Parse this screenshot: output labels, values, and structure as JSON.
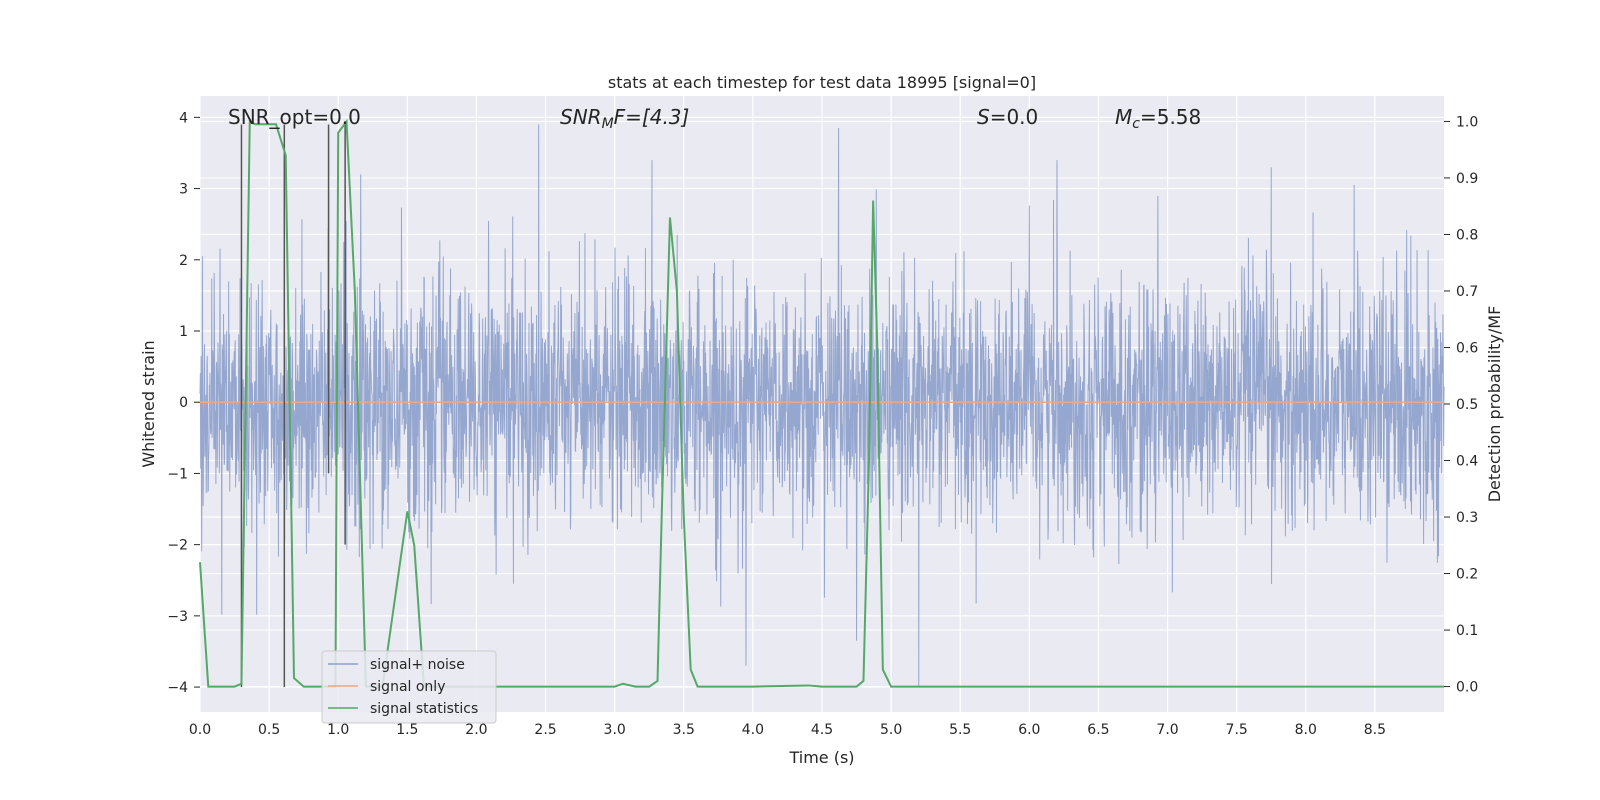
{
  "chart_data": {
    "type": "line",
    "title": "stats at each timestep for test data 18995 [signal=0]",
    "xlabel": "Time (s)",
    "ylabel": "Whitened strain",
    "y2label": "Detection probability/MF",
    "xlim": [
      0.0,
      9.0
    ],
    "ylim": [
      -4.35,
      4.3
    ],
    "y2lim": [
      -0.045,
      1.045
    ],
    "xticks": [
      "0.0",
      "0.5",
      "1.0",
      "1.5",
      "2.0",
      "2.5",
      "3.0",
      "3.5",
      "4.0",
      "4.5",
      "5.0",
      "5.5",
      "6.0",
      "6.5",
      "7.0",
      "7.5",
      "8.0",
      "8.5"
    ],
    "yticks": [
      "4",
      "3",
      "2",
      "1",
      "0",
      "−1",
      "−2",
      "−3",
      "−4"
    ],
    "y2ticks": [
      "1.0",
      "0.9",
      "0.8",
      "0.7",
      "0.6",
      "0.5",
      "0.4",
      "0.3",
      "0.2",
      "0.1",
      "0.0"
    ],
    "grid": true,
    "legend_position": "lower-left",
    "annotations": {
      "snr_opt": "SNR_opt=0.0",
      "snr_mf_main": "SNR",
      "snr_mf_sub": "M",
      "snr_mf_tail": "F=[4.3]",
      "s_main": "S",
      "s_tail": "=0.0",
      "mc_main": "M",
      "mc_sub": "c",
      "mc_tail": "=5.58"
    },
    "series": [
      {
        "name": "signal+ noise",
        "color": "#8da0cb",
        "kind": "noise",
        "typical_std": 0.85,
        "peaks": [
          [
            2.45,
            3.9
          ],
          [
            4.62,
            3.85
          ],
          [
            3.27,
            3.4
          ],
          [
            5.2,
            -4.0
          ],
          [
            3.95,
            -3.7
          ],
          [
            4.75,
            -3.35
          ],
          [
            7.75,
            3.3
          ],
          [
            8.35,
            3.05
          ],
          [
            0.3,
            -2.6
          ],
          [
            6.2,
            3.4
          ]
        ]
      },
      {
        "name": "signal only",
        "color": "#e9a88a",
        "kind": "flat",
        "y": 0.0
      },
      {
        "name": "signal statistics",
        "color": "#55a868",
        "axis": "right",
        "x": [
          0.0,
          0.06,
          0.15,
          0.25,
          0.3,
          0.36,
          0.4,
          0.5,
          0.55,
          0.62,
          0.68,
          0.75,
          0.9,
          0.98,
          1.0,
          1.06,
          1.12,
          1.2,
          1.32,
          1.5,
          1.55,
          1.62,
          1.7,
          2.0,
          2.5,
          3.0,
          3.06,
          3.15,
          3.25,
          3.31,
          3.34,
          3.4,
          3.45,
          3.5,
          3.55,
          3.6,
          4.0,
          4.4,
          4.5,
          4.75,
          4.8,
          4.84,
          4.87,
          4.9,
          4.94,
          5.0,
          9.0
        ],
        "y": [
          0.22,
          0.0,
          0.0,
          0.0,
          0.005,
          1.0,
          0.995,
          0.995,
          0.995,
          0.94,
          0.015,
          0.0,
          0.0,
          0.0,
          0.98,
          1.0,
          0.7,
          0.0,
          0.0,
          0.31,
          0.25,
          0.0,
          0.0,
          0.0,
          0.0,
          0.0,
          0.005,
          0.0,
          0.0,
          0.01,
          0.3,
          0.83,
          0.7,
          0.3,
          0.03,
          0.0,
          0.0,
          0.002,
          0.0,
          0.0,
          0.01,
          0.4,
          0.86,
          0.6,
          0.03,
          0.0,
          0.0
        ]
      }
    ],
    "markers": {
      "color": "#555555",
      "segments": [
        [
          0.3,
          3.9,
          -4.0
        ],
        [
          0.61,
          3.9,
          -4.0
        ],
        [
          0.93,
          3.9,
          -1.0
        ],
        [
          1.05,
          3.9,
          -2.0
        ]
      ]
    }
  }
}
